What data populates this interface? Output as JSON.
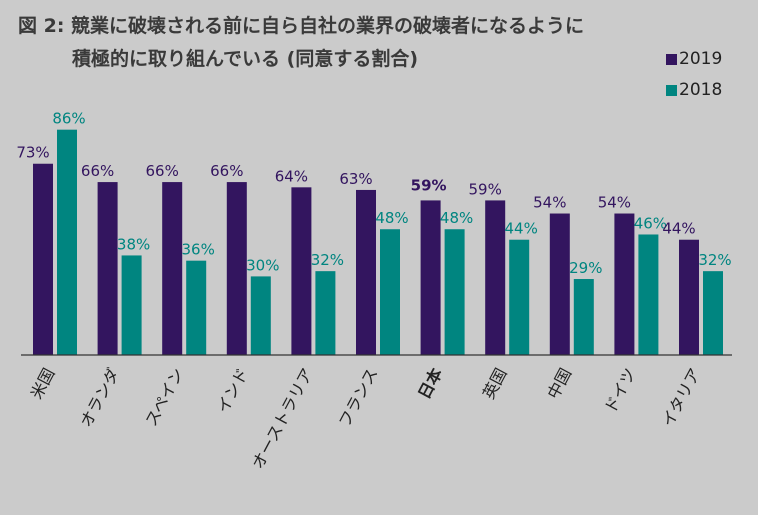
{
  "chart_data": {
    "type": "bar",
    "title_line1": "図 2: 競業に破壊される前に自ら自社の業界の破壊者になるように",
    "title_line2": "積極的に取り組んでいる (同意する割合)",
    "categories": [
      "米国",
      "オランダ",
      "スペイン",
      "インド",
      "オーストラリア",
      "フランス",
      "日本",
      "英国",
      "中国",
      "ドイツ",
      "イタリア"
    ],
    "highlight_category": "日本",
    "series": [
      {
        "name": "2019",
        "color": "#33155f",
        "values": [
          73,
          66,
          66,
          66,
          64,
          63,
          59,
          59,
          54,
          54,
          44
        ],
        "labels": [
          "73%",
          "66%",
          "66%",
          "66%",
          "64%",
          "63%",
          "59%",
          "59%",
          "54%",
          "54%",
          "44%"
        ]
      },
      {
        "name": "2018",
        "color": "#008580",
        "values": [
          86,
          38,
          36,
          30,
          32,
          48,
          48,
          44,
          29,
          46,
          32
        ],
        "labels": [
          "86%",
          "38%",
          "36%",
          "30%",
          "32%",
          "48%",
          "48%",
          "44%",
          "29%",
          "46%",
          "32%"
        ]
      }
    ],
    "ylim": [
      0,
      100
    ],
    "grid": false,
    "legend_position": "top-right",
    "xlabel": "",
    "ylabel": ""
  }
}
